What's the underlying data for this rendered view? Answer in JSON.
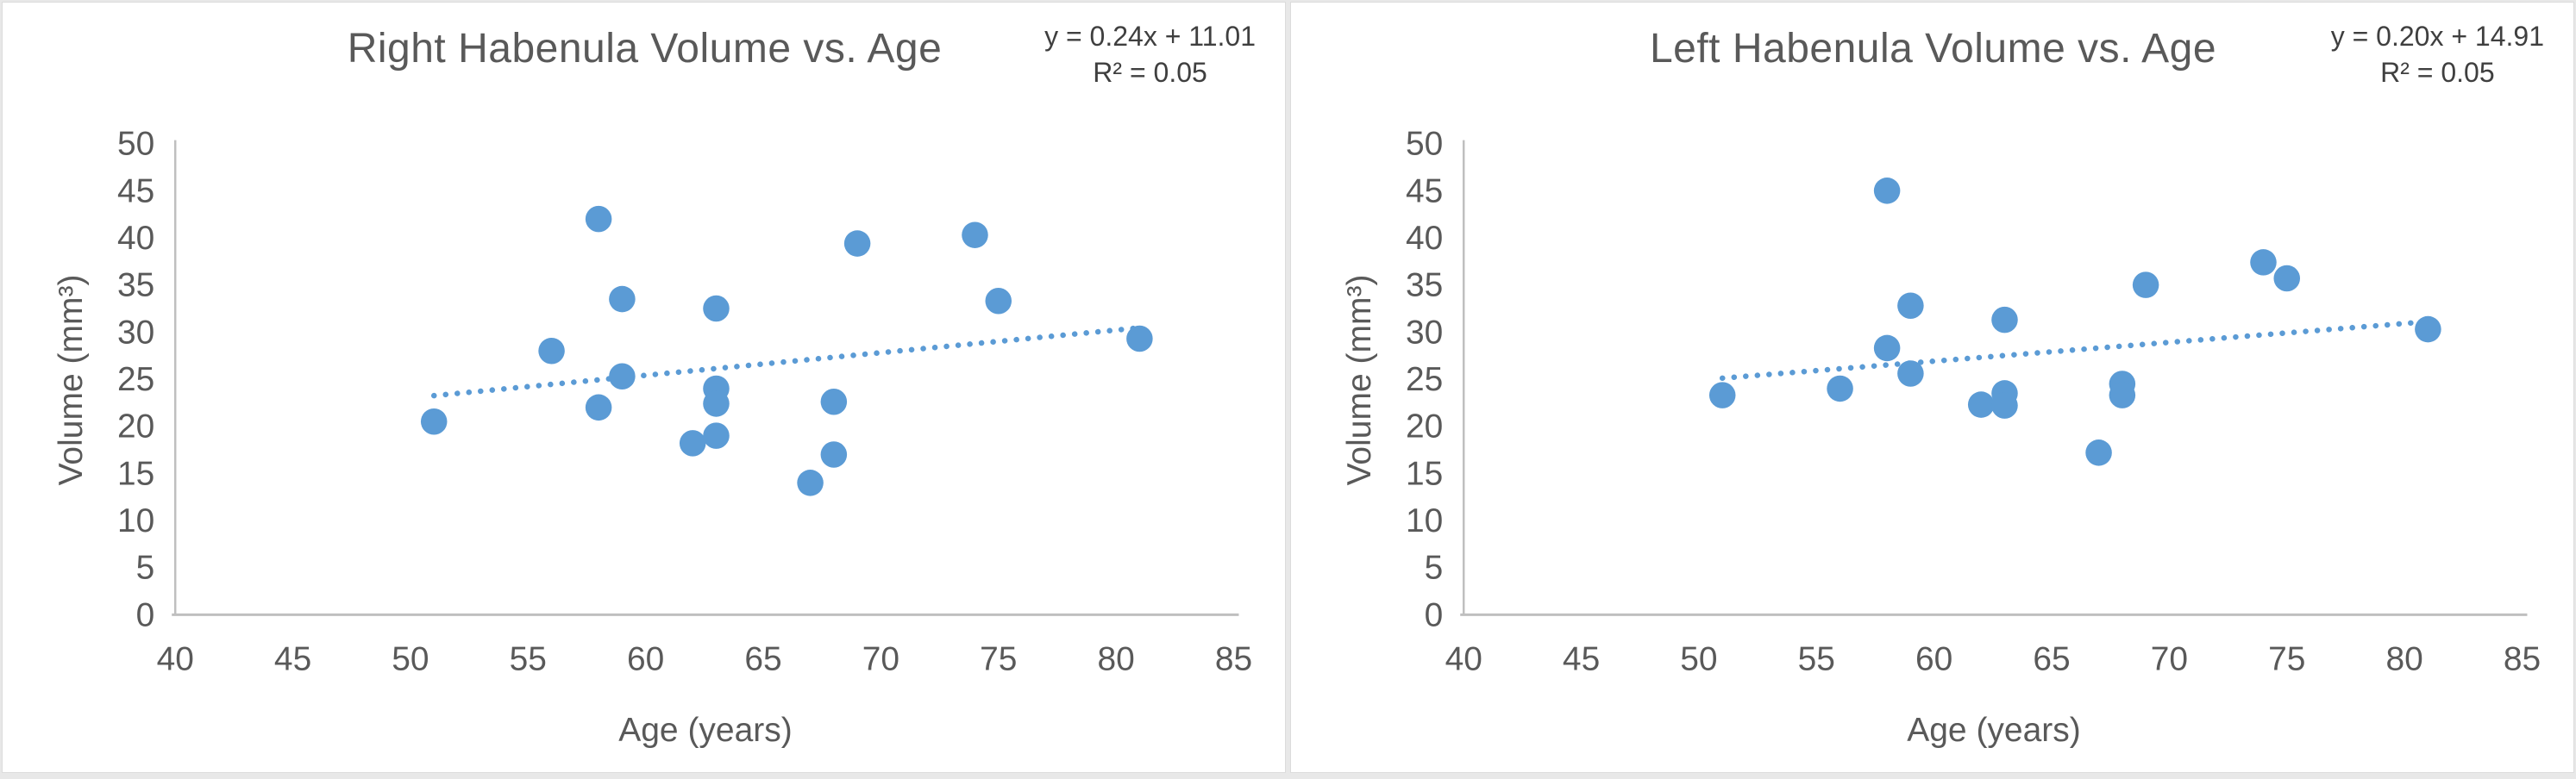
{
  "figure": {
    "background_color": "#e8e8e8",
    "panel_background": "#ffffff",
    "panel_border_color": "#dcdcdc"
  },
  "colors": {
    "marker": "#5b9bd5",
    "trendline": "#5b9bd5",
    "axis_line": "#bfbfbf",
    "tick_label": "#595959",
    "title": "#595959",
    "equation": "#3f3f3f"
  },
  "chart_data": [
    {
      "type": "scatter",
      "title": "Right Habenula Volume vs. Age",
      "equation_label": "y = 0.24x + 11.01",
      "r2_label": "R² = 0.05",
      "xlabel": "Age (years)",
      "ylabel": "Volume (mm³)",
      "xlim": [
        40,
        85
      ],
      "ylim": [
        0,
        50
      ],
      "xticks": [
        40,
        45,
        50,
        55,
        60,
        65,
        70,
        75,
        80,
        85
      ],
      "yticks": [
        0,
        5,
        10,
        15,
        20,
        25,
        30,
        35,
        40,
        45,
        50
      ],
      "grid": false,
      "legend": false,
      "points": [
        [
          51,
          20.5
        ],
        [
          56,
          28
        ],
        [
          58,
          42
        ],
        [
          58,
          22
        ],
        [
          59,
          33.5
        ],
        [
          59,
          25.3
        ],
        [
          62,
          18.2
        ],
        [
          63,
          32.5
        ],
        [
          63,
          24
        ],
        [
          63,
          22.4
        ],
        [
          63,
          19
        ],
        [
          67,
          14
        ],
        [
          68,
          22.6
        ],
        [
          68,
          17
        ],
        [
          69,
          39.4
        ],
        [
          74,
          40.3
        ],
        [
          75,
          33.3
        ],
        [
          81,
          29.3
        ]
      ],
      "trendline": {
        "slope": 0.24,
        "intercept": 11.01,
        "x_start": 51,
        "x_end": 81,
        "style": "dotted"
      }
    },
    {
      "type": "scatter",
      "title": "Left Habenula Volume vs. Age",
      "equation_label": "y = 0.20x + 14.91",
      "r2_label": "R² = 0.05",
      "xlabel": "Age (years)",
      "ylabel": "Volume (mm³)",
      "xlim": [
        40,
        85
      ],
      "ylim": [
        0,
        50
      ],
      "xticks": [
        40,
        45,
        50,
        55,
        60,
        65,
        70,
        75,
        80,
        85
      ],
      "yticks": [
        0,
        5,
        10,
        15,
        20,
        25,
        30,
        35,
        40,
        45,
        50
      ],
      "grid": false,
      "legend": false,
      "points": [
        [
          51,
          23.3
        ],
        [
          56,
          24
        ],
        [
          58,
          45
        ],
        [
          58,
          28.3
        ],
        [
          59,
          32.8
        ],
        [
          59,
          25.6
        ],
        [
          62,
          22.3
        ],
        [
          63,
          31.3
        ],
        [
          63,
          23.5
        ],
        [
          63,
          22.2
        ],
        [
          67,
          17.2
        ],
        [
          68,
          24.5
        ],
        [
          68,
          23.3
        ],
        [
          69,
          35
        ],
        [
          74,
          37.4
        ],
        [
          75,
          35.7
        ],
        [
          81,
          30.3
        ]
      ],
      "trendline": {
        "slope": 0.2,
        "intercept": 14.91,
        "x_start": 51,
        "x_end": 81,
        "style": "dotted"
      }
    }
  ]
}
